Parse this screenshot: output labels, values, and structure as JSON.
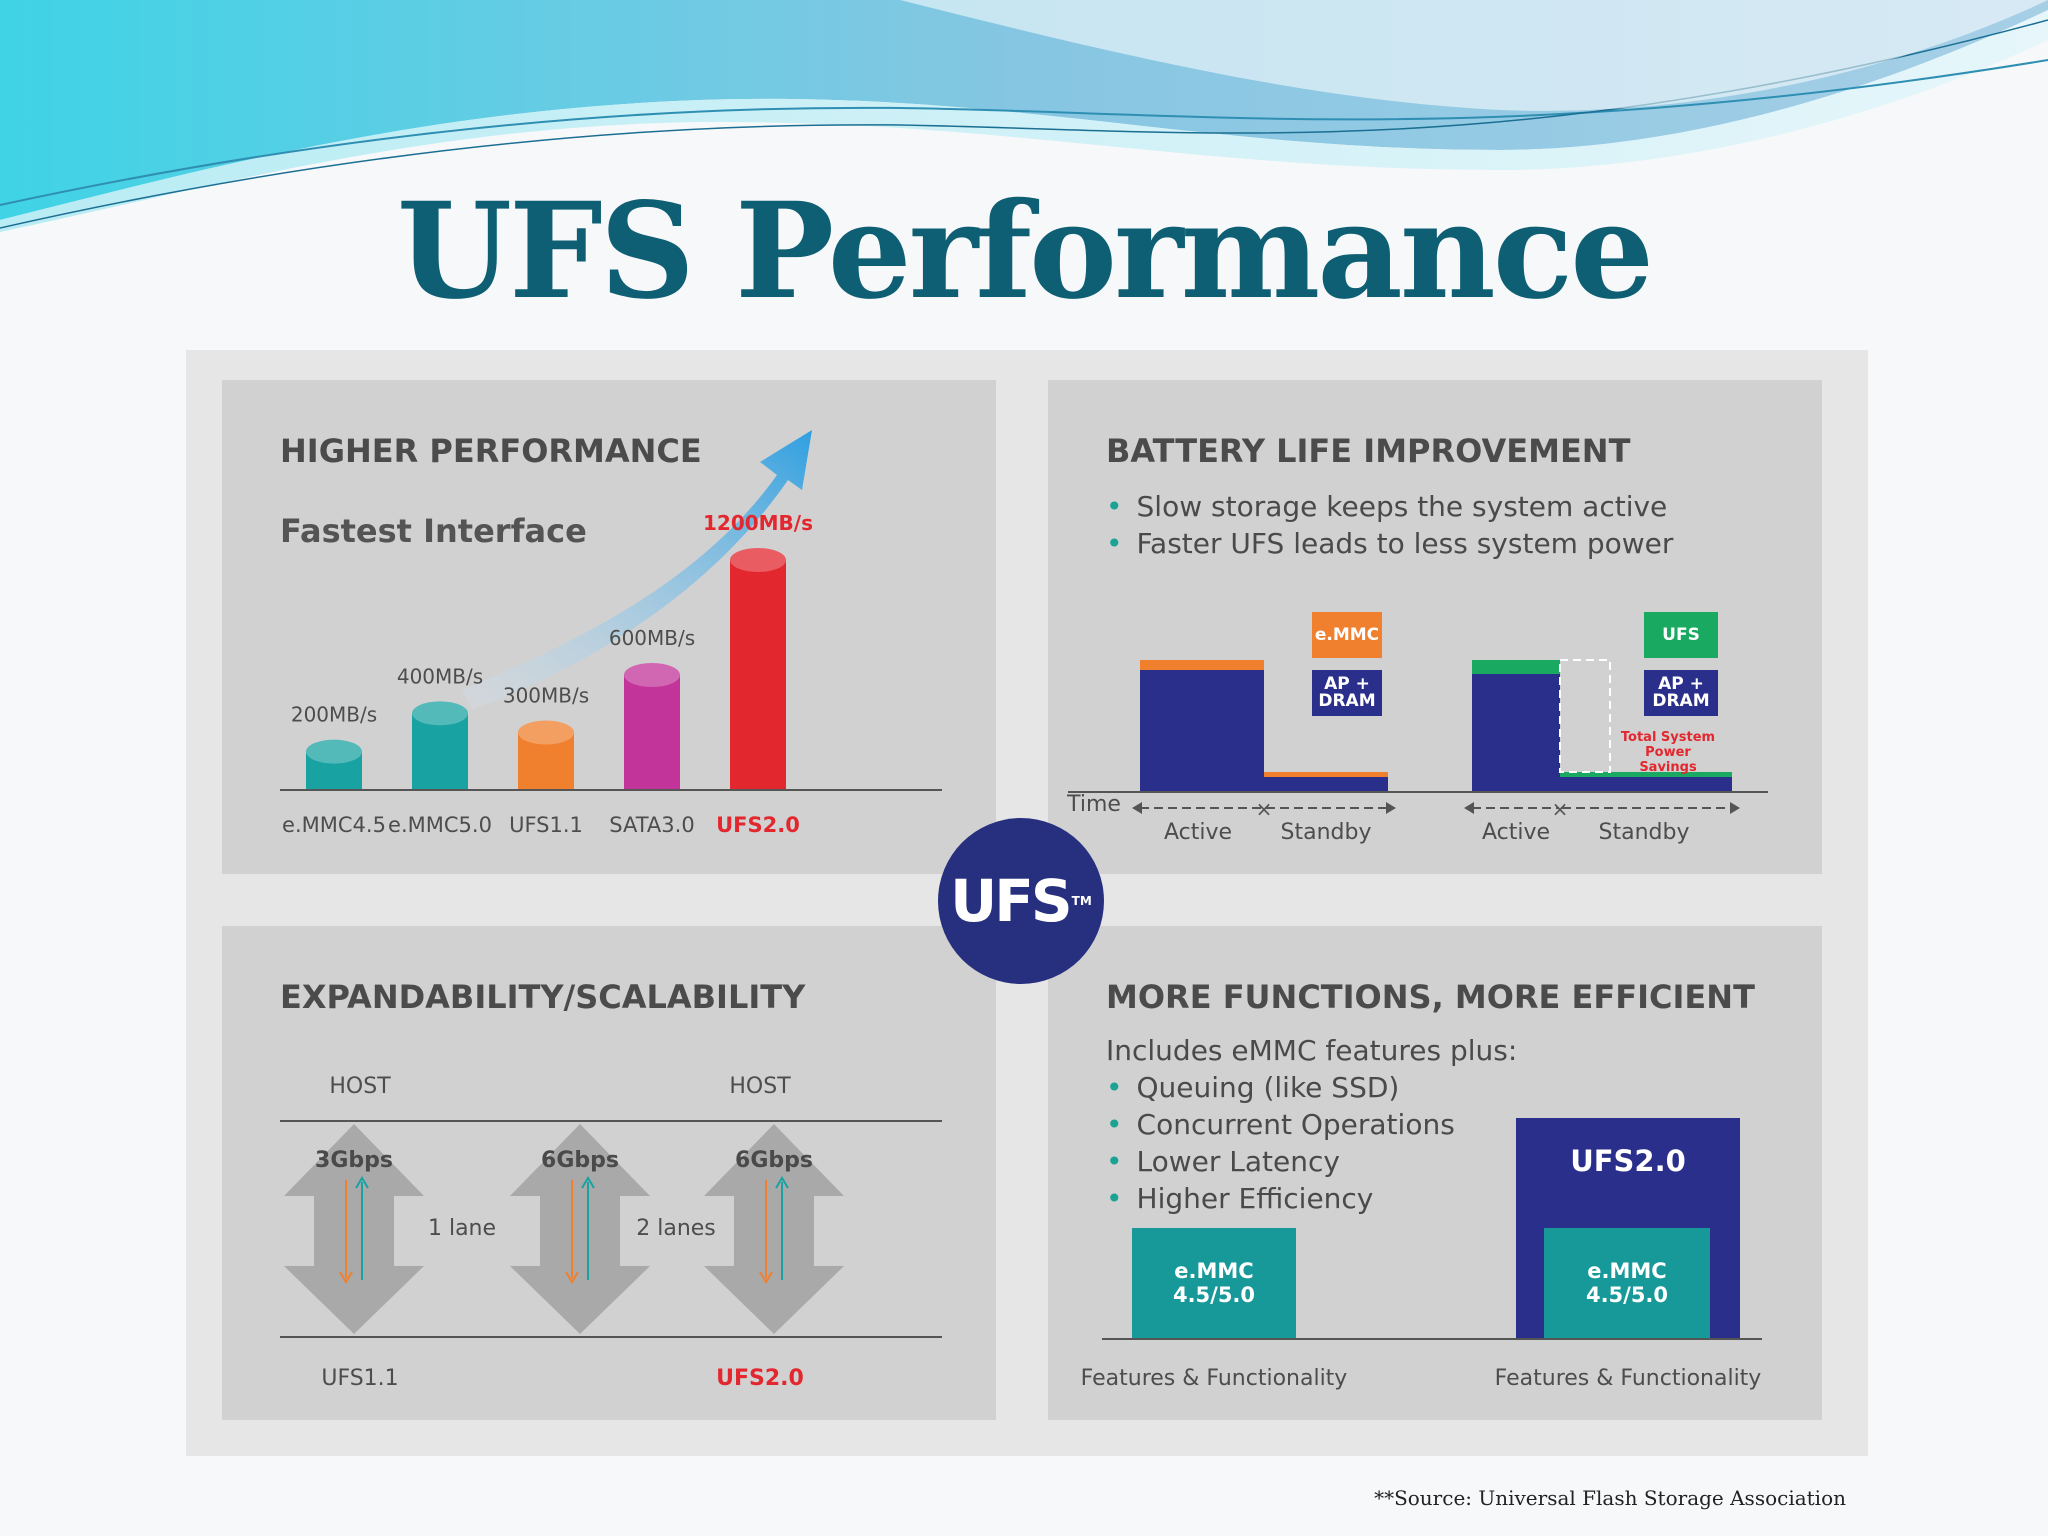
{
  "slide": {
    "title": "UFS Performance",
    "source": "**Source: Universal Flash Storage Association"
  },
  "higher_performance": {
    "title": "HIGHER PERFORMANCE",
    "subtitle": "Fastest Interface",
    "chart_data": {
      "type": "bar",
      "categories": [
        "e.MMC4.5",
        "e.MMC5.0",
        "UFS1.1",
        "SATA3.0",
        "UFS2.0"
      ],
      "values": [
        200,
        400,
        300,
        600,
        1200
      ],
      "value_labels": [
        "200MB/s",
        "400MB/s",
        "300MB/s",
        "600MB/s",
        "1200MB/s"
      ],
      "unit": "MB/s",
      "colors": [
        "#19a2a2",
        "#19a2a2",
        "#f07f2e",
        "#c2349a",
        "#e2272e"
      ],
      "highlight": "UFS2.0",
      "grid": false
    }
  },
  "battery": {
    "title": "BATTERY LIFE IMPROVEMENT",
    "bullets": [
      "Slow storage keeps the system active",
      "Faster UFS leads to less system power"
    ],
    "time_label": "Time",
    "emmc_legend": "e.MMC",
    "ufs_legend": "UFS",
    "ap_dram_legend": "AP + DRAM",
    "savings_label": "Total System Power Savings",
    "active_label": "Active",
    "standby_label": "Standby",
    "colors": {
      "emmc": "#f07f2e",
      "ufs": "#1aa960",
      "ap_dram": "#2b2f8c",
      "savings_text": "#e2272e"
    }
  },
  "center_badge": {
    "text": "UFS",
    "tm": "TM"
  },
  "scalability": {
    "title": "EXPANDABILITY/SCALABILITY",
    "host_label": "HOST",
    "left": {
      "speed": "3Gbps",
      "lanes": "1 lane",
      "name": "UFS1.1"
    },
    "right": {
      "speeds": [
        "6Gbps",
        "6Gbps"
      ],
      "lanes": "2 lanes",
      "name": "UFS2.0"
    }
  },
  "functions": {
    "title": "MORE FUNCTIONS, MORE EFFICIENT",
    "intro": "Includes eMMC features plus:",
    "bullets": [
      "Queuing  (like SSD)",
      "Concurrent Operations",
      "Lower Latency",
      "Higher Efficiency"
    ],
    "emmc_box": "e.MMC 4.5/5.0",
    "ufs_box": "UFS2.0",
    "axis_label": "Features & Functionality",
    "colors": {
      "emmc": "#17999a",
      "ufs": "#2b2f8c"
    }
  }
}
